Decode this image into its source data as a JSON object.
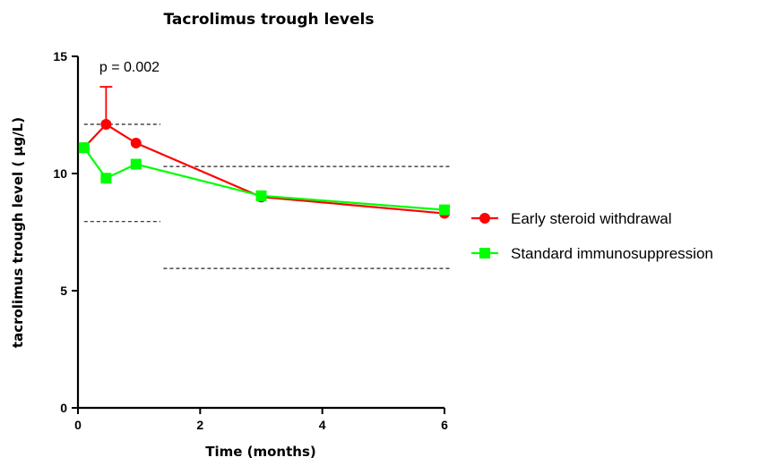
{
  "chart_data": {
    "type": "line",
    "title": "Tacrolimus trough levels",
    "xlabel": "Time (months)",
    "ylabel": "tacrolimus trough level ( μg/L)",
    "xlim": [
      0,
      6
    ],
    "ylim": [
      0,
      15
    ],
    "x_ticks": [
      0,
      2,
      4,
      6
    ],
    "y_ticks": [
      0,
      5,
      10,
      15
    ],
    "grid": false,
    "legend_position": "right",
    "series": [
      {
        "name": "Early steroid withdrawal",
        "color": "#ff0000",
        "marker": "circle",
        "x": [
          0.1,
          0.46,
          0.95,
          3.0,
          6.0
        ],
        "y": [
          11.1,
          12.1,
          11.3,
          9.0,
          8.3
        ],
        "error_upper": [
          null,
          13.7,
          null,
          null,
          null
        ]
      },
      {
        "name": "Standard immunosuppression",
        "color": "#00ff00",
        "marker": "square",
        "x": [
          0.1,
          0.46,
          0.95,
          3.0,
          6.0
        ],
        "y": [
          11.1,
          9.8,
          10.4,
          9.05,
          8.45
        ]
      }
    ],
    "reference_lines": [
      {
        "y": 12.1,
        "x_start": 0.1,
        "x_end": 1.35
      },
      {
        "y": 7.95,
        "x_start": 0.1,
        "x_end": 1.35
      },
      {
        "y": 10.3,
        "x_start": 1.4,
        "x_end": 6.1
      },
      {
        "y": 5.95,
        "x_start": 1.4,
        "x_end": 6.1
      }
    ],
    "annotations": [
      {
        "text": "p = 0.002",
        "x": 0.35,
        "y": 14.35
      }
    ]
  }
}
